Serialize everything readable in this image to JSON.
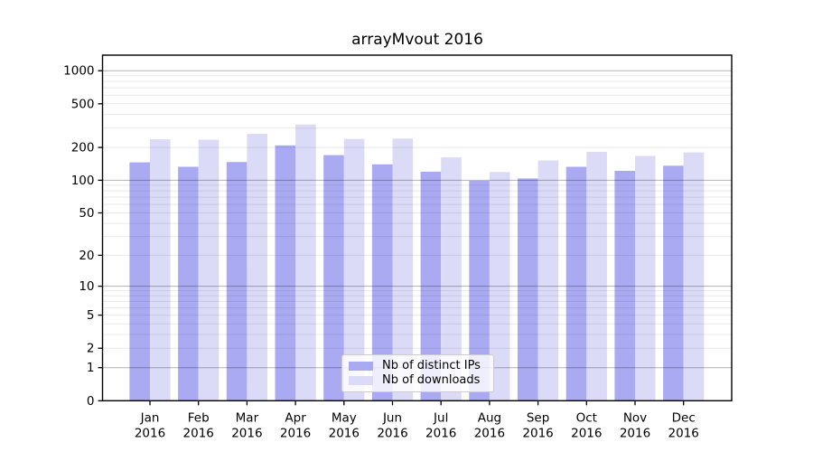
{
  "chart_data": {
    "type": "bar",
    "title": "arrayMvout 2016",
    "categories": [
      "Jan",
      "Feb",
      "Mar",
      "Apr",
      "May",
      "Jun",
      "Jul",
      "Aug",
      "Sep",
      "Oct",
      "Nov",
      "Dec"
    ],
    "x_year_label": "2016",
    "series": [
      {
        "name": "Nb of distinct IPs",
        "color": "#aaaaf2",
        "values": [
          146,
          133,
          147,
          209,
          170,
          140,
          120,
          99,
          104,
          133,
          122,
          136
        ]
      },
      {
        "name": "Nb of downloads",
        "color": "#dbdbf8",
        "values": [
          237,
          235,
          266,
          324,
          239,
          241,
          162,
          119,
          152,
          182,
          167,
          180
        ]
      }
    ],
    "yticks": [
      0,
      1,
      2,
      5,
      10,
      20,
      50,
      100,
      200,
      500,
      1000
    ],
    "y_scale": "log1p",
    "ylim": [
      0,
      1380
    ],
    "grid": true,
    "major_grid_values": [
      1,
      10,
      100,
      1000
    ],
    "legend_position": "lower-center",
    "colors": {
      "axis": "#000000",
      "major_grid": "rgba(0,0,0,0.30)",
      "minor_grid": "rgba(0,0,0,0.09)",
      "tick_text": "#000000"
    }
  }
}
